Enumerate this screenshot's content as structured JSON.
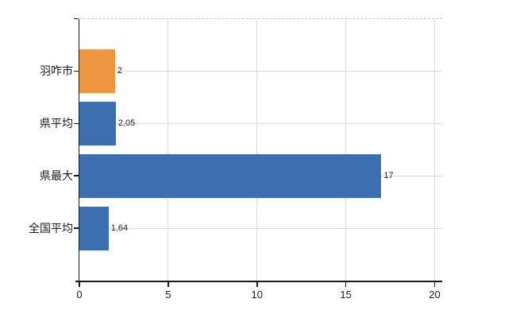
{
  "chart_data": {
    "type": "bar",
    "orientation": "horizontal",
    "title": "",
    "categories": [
      "羽咋市",
      "県平均",
      "県最大",
      "全国平均"
    ],
    "values": [
      2,
      2.05,
      17,
      1.64
    ],
    "value_labels": [
      "2",
      "2.05",
      "17",
      "1.64"
    ],
    "bar_colors": [
      "#ED9540",
      "#3D6EB0",
      "#3D6EB0",
      "#3D6EB0"
    ],
    "xlabel": "",
    "ylabel": "",
    "xlim": [
      0,
      20.4
    ],
    "xticks": [
      0,
      5,
      10,
      15,
      20
    ],
    "xtick_labels": [
      "0",
      "5",
      "10",
      "15",
      "20"
    ],
    "grid": true,
    "legend": "none",
    "colors": {
      "highlight_bar": "#ED9540",
      "default_bar": "#3D6EB0",
      "gridline": "#D9D9D9",
      "top_border": "#C6C6C6",
      "axis": "#1A1A1A",
      "text": "#1A1A1A",
      "background": "#FFFFFF"
    }
  }
}
